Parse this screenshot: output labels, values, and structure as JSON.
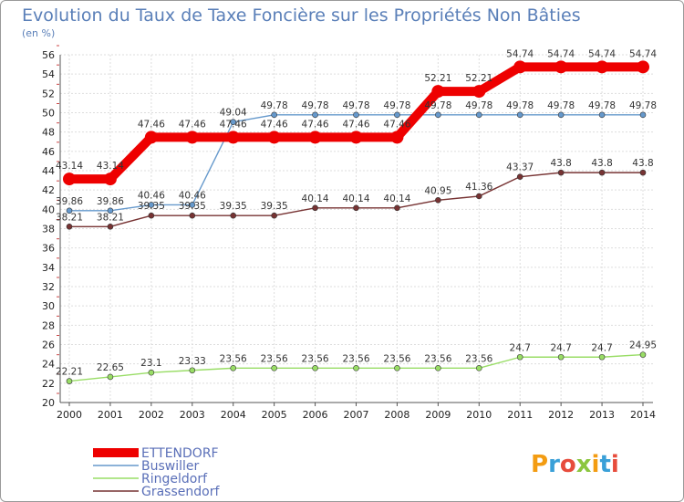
{
  "chart_data": {
    "type": "line",
    "title": "Evolution du Taux de Taxe Foncière sur les Propriétés Non Bâties",
    "unit_label": "(en %)",
    "xlabel": "",
    "ylabel": "",
    "ylim": [
      20,
      56
    ],
    "y_tick_step": 2,
    "grid": true,
    "legend_placement": "bottom-left",
    "x": [
      "2000",
      "2001",
      "2002",
      "2003",
      "2004",
      "2005",
      "2006",
      "2007",
      "2008",
      "2009",
      "2010",
      "2011",
      "2012",
      "2013",
      "2014"
    ],
    "series": [
      {
        "name": "ETTENDORF",
        "color": "#ee0000",
        "values": [
          43.14,
          43.14,
          47.46,
          47.46,
          47.46,
          47.46,
          47.46,
          47.46,
          47.46,
          52.21,
          52.21,
          54.74,
          54.74,
          54.74,
          54.74
        ],
        "labels": [
          "43.14",
          "43.14",
          "47.46",
          "47.46",
          "47.46",
          "47.46",
          "47.46",
          "47.46",
          "47.46",
          "52.21",
          "52.21",
          "54.74",
          "54.74",
          "54.74",
          "54.74"
        ]
      },
      {
        "name": "Buswiller",
        "color": "#6699cc",
        "values": [
          39.86,
          39.86,
          40.46,
          40.46,
          49.04,
          49.78,
          49.78,
          49.78,
          49.78,
          49.78,
          49.78,
          49.78,
          49.78,
          49.78,
          49.78
        ],
        "labels": [
          "39.86",
          "39.86",
          "40.46",
          "40.46",
          "49.04",
          "49.78",
          "49.78",
          "49.78",
          "49.78",
          "49.78",
          "49.78",
          "49.78",
          "49.78",
          "49.78",
          "49.78"
        ]
      },
      {
        "name": "Ringeldorf",
        "color": "#99dd66",
        "values": [
          22.21,
          22.65,
          23.1,
          23.33,
          23.56,
          23.56,
          23.56,
          23.56,
          23.56,
          23.56,
          23.56,
          24.7,
          24.7,
          24.7,
          24.95
        ],
        "labels": [
          "22.21",
          "22.65",
          "23.1",
          "23.33",
          "23.56",
          "23.56",
          "23.56",
          "23.56",
          "23.56",
          "23.56",
          "23.56",
          "24.7",
          "24.7",
          "24.7",
          "24.95"
        ]
      },
      {
        "name": "Grassendorf",
        "color": "#773333",
        "values": [
          38.21,
          38.21,
          39.35,
          39.35,
          39.35,
          39.35,
          40.14,
          40.14,
          40.14,
          40.95,
          41.36,
          43.37,
          43.8,
          43.8,
          43.8
        ],
        "labels": [
          "38.21",
          "38.21",
          "39.35",
          "39.35",
          "39.35",
          "39.35",
          "40.14",
          "40.14",
          "40.14",
          "40.95",
          "41.36",
          "43.37",
          "43.8",
          "43.8",
          "43.8"
        ]
      }
    ]
  },
  "logo": {
    "text": "Proxiti",
    "colors": [
      "#f39c12",
      "#3aa0d8",
      "#e74c3c",
      "#8cc63f",
      "#f39c12",
      "#3aa0d8",
      "#e74c3c"
    ]
  }
}
